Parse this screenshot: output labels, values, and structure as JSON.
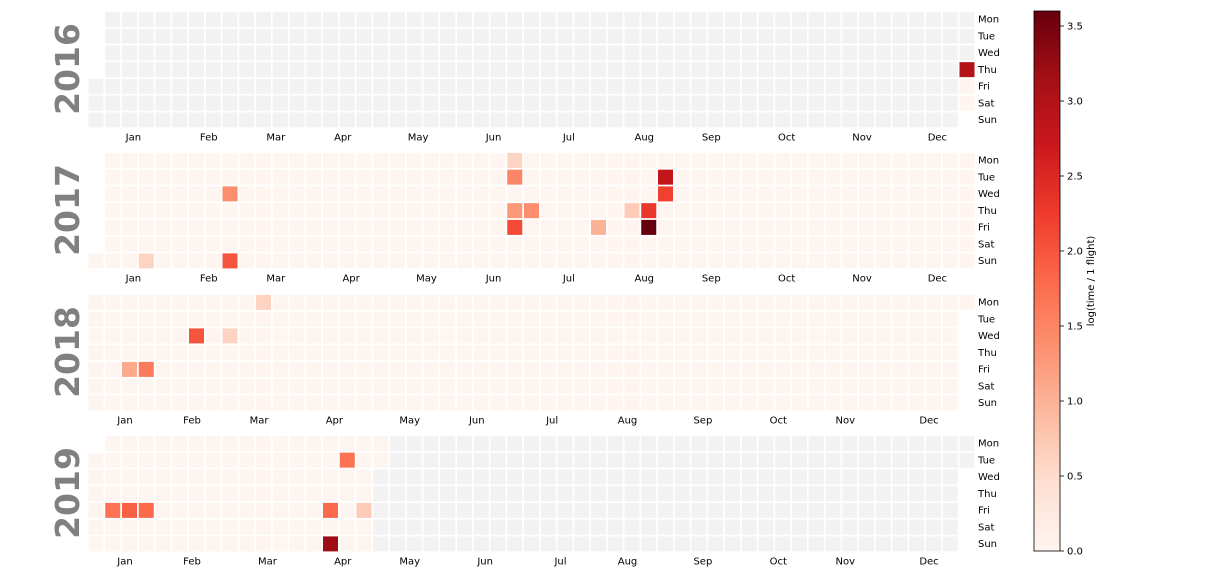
{
  "chart_data": {
    "type": "heatmap",
    "title": "",
    "years": [
      2016,
      2017,
      2018,
      2019
    ],
    "month_labels": [
      "Jan",
      "Feb",
      "Mar",
      "Apr",
      "May",
      "Jun",
      "Jul",
      "Aug",
      "Sep",
      "Oct",
      "Nov",
      "Dec"
    ],
    "weekday_labels": [
      "Mon",
      "Tue",
      "Wed",
      "Thu",
      "Fri",
      "Sat",
      "Sun"
    ],
    "colorbar": {
      "label": "log(time / 1 flight)",
      "range": [
        0.0,
        3.6
      ],
      "ticks": [
        "0.0",
        "0.5",
        "1.0",
        "1.5",
        "2.0",
        "2.5",
        "3.0",
        "3.5"
      ],
      "colormap": "Reds"
    },
    "colors": {
      "no_data": "#f2f2f2",
      "zero": "#fff5f0",
      "year_label": "#808080"
    },
    "data_range_start": "2016-12-29",
    "data_range_end": "2019-04-30",
    "values": [
      {
        "date": "2016-12-29",
        "value": 3.0
      },
      {
        "date": "2017-01-22",
        "value": 0.6
      },
      {
        "date": "2017-02-22",
        "value": 1.4
      },
      {
        "date": "2017-02-26",
        "value": 2.0
      },
      {
        "date": "2017-06-19",
        "value": 0.6
      },
      {
        "date": "2017-06-20",
        "value": 1.5
      },
      {
        "date": "2017-06-22",
        "value": 1.3
      },
      {
        "date": "2017-06-23",
        "value": 2.1
      },
      {
        "date": "2017-06-29",
        "value": 1.4
      },
      {
        "date": "2017-07-28",
        "value": 1.0
      },
      {
        "date": "2017-08-10",
        "value": 0.7
      },
      {
        "date": "2017-08-17",
        "value": 2.3
      },
      {
        "date": "2017-08-18",
        "value": 3.6
      },
      {
        "date": "2017-08-22",
        "value": 2.8
      },
      {
        "date": "2017-08-23",
        "value": 2.2
      },
      {
        "date": "2018-01-19",
        "value": 1.1
      },
      {
        "date": "2018-01-26",
        "value": 1.6
      },
      {
        "date": "2018-02-14",
        "value": 2.0
      },
      {
        "date": "2018-02-28",
        "value": 0.6
      },
      {
        "date": "2018-03-12",
        "value": 0.6
      },
      {
        "date": "2019-01-11",
        "value": 1.7
      },
      {
        "date": "2019-01-18",
        "value": 1.9
      },
      {
        "date": "2019-01-25",
        "value": 1.8
      },
      {
        "date": "2019-04-12",
        "value": 1.8
      },
      {
        "date": "2019-04-14",
        "value": 3.2
      },
      {
        "date": "2019-04-16",
        "value": 1.7
      },
      {
        "date": "2019-04-26",
        "value": 0.7
      }
    ]
  }
}
